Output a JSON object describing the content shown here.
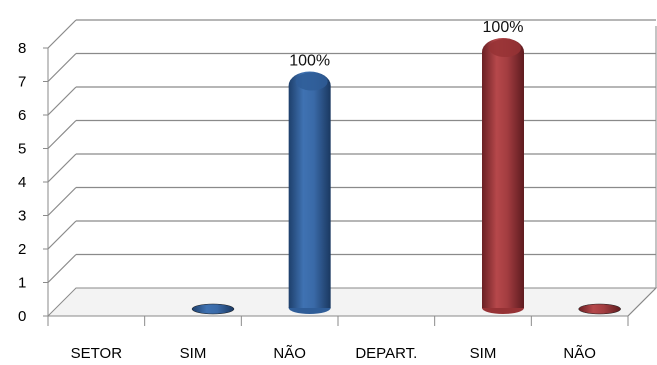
{
  "chart_data": {
    "type": "bar",
    "title": "",
    "xlabel": "",
    "ylabel": "",
    "ylim": [
      0,
      8
    ],
    "y_ticks": [
      "0",
      "1",
      "2",
      "3",
      "4",
      "5",
      "6",
      "7",
      "8"
    ],
    "grid": true,
    "three_d": true,
    "categories": [
      "SETOR",
      "SIM",
      "NÃO",
      "DEPART.",
      "SIM",
      "NÃO"
    ],
    "series": [
      {
        "color": "#2f5d98",
        "values": [
          null,
          0,
          7,
          null,
          null,
          null
        ]
      },
      {
        "color": "#963235",
        "values": [
          null,
          null,
          null,
          null,
          8,
          0
        ]
      }
    ],
    "data_labels": [
      {
        "category_index": 2,
        "text": "100%"
      },
      {
        "category_index": 4,
        "text": "100%"
      }
    ]
  }
}
